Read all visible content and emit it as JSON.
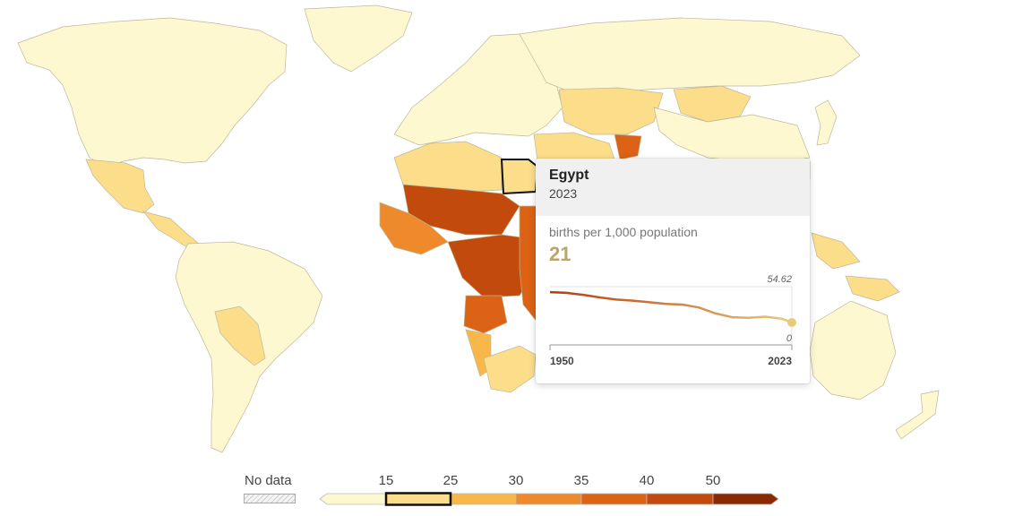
{
  "tooltip": {
    "country": "Egypt",
    "year": "2023",
    "metric_label": "births per 1,000 population",
    "value": "21",
    "sparkline": {
      "y_max_label": "54.62",
      "y_min_label": "0",
      "x_start_label": "1950",
      "x_end_label": "2023",
      "years": [
        1950,
        1955,
        1960,
        1965,
        1970,
        1975,
        1980,
        1985,
        1990,
        1995,
        2000,
        2005,
        2010,
        2015,
        2020,
        2023
      ],
      "values": [
        49.5,
        48.8,
        47.0,
        44.5,
        42.5,
        41.5,
        40.0,
        38.5,
        37.8,
        35.0,
        29.5,
        26.0,
        25.5,
        26.5,
        24.5,
        21.0
      ]
    }
  },
  "legend": {
    "no_data_label": "No data",
    "ticks": [
      "15",
      "25",
      "30",
      "35",
      "40",
      "50"
    ],
    "bins": [
      "#fdf8d0",
      "#fcdd8a",
      "#f9b74a",
      "#ee8a2c",
      "#dc6215",
      "#c24a0c",
      "#8a2a05"
    ],
    "highlighted_bin": 1,
    "colors": {
      "highlight_border": "#111111",
      "sparkline_start": "#b43b0e",
      "sparkline_end": "#e9c97a"
    }
  },
  "map": {
    "region_colors": {
      "north_america": "#fdf8d0",
      "greenland": "#fdf8d0",
      "mexico": "#fcdd8a",
      "central_america": "#fcdd8a",
      "south_america": "#fdf8d0",
      "bolivia": "#fcdd8a",
      "europe": "#fdf8d0",
      "russia": "#fdf8d0",
      "north_africa": "#fcdd8a",
      "egypt": "#fcdd8a",
      "sahel": "#c24a0c",
      "west_africa": "#ee8a2c",
      "central_africa": "#c24a0c",
      "east_africa": "#dc6215",
      "angola": "#dc6215",
      "southern_africa": "#fcdd8a",
      "namibia": "#f9b74a",
      "middle_east": "#fcdd8a",
      "central_asia": "#fcdd8a",
      "afghanistan": "#dc6215",
      "india": "#fcdd8a",
      "china": "#fdf8d0",
      "mongolia": "#fcdd8a",
      "southeast_asia": "#fcdd8a",
      "japan": "#fdf8d0",
      "png": "#fcdd8a",
      "australia": "#fdf8d0",
      "new_zealand": "#fdf8d0",
      "madagascar": "#ee8a2c"
    }
  }
}
